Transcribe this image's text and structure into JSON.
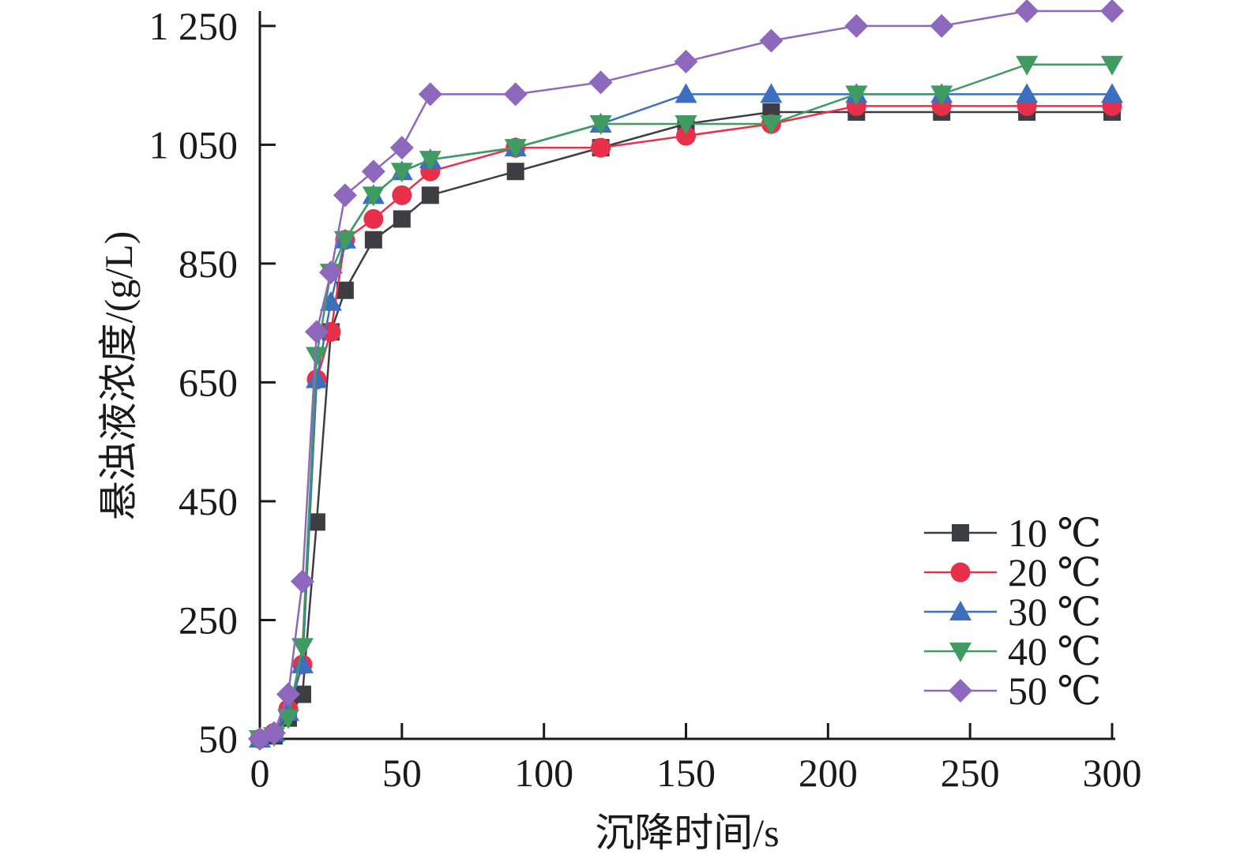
{
  "chart_data": {
    "type": "line",
    "xlabel": "沉降时间/s",
    "ylabel": "悬浊液浓度/(g/L)",
    "xlim": [
      0,
      300
    ],
    "ylim": [
      50,
      1275
    ],
    "x_ticks": [
      0,
      50,
      100,
      150,
      200,
      250,
      300
    ],
    "x_tick_labels": [
      "0",
      "50",
      "100",
      "150",
      "200",
      "250",
      "300"
    ],
    "y_ticks": [
      50,
      250,
      450,
      650,
      850,
      1050,
      1250
    ],
    "y_tick_labels": [
      "50",
      "250",
      "450",
      "650",
      "850",
      "1 050",
      "1 250"
    ],
    "grid": false,
    "legend_position": "bottom-right",
    "x": [
      0,
      5,
      10,
      15,
      20,
      25,
      30,
      40,
      50,
      60,
      90,
      120,
      150,
      180,
      210,
      240,
      270,
      300
    ],
    "series": [
      {
        "name": "10 ℃",
        "color": "#3d3d44",
        "marker": "square",
        "values": [
          50,
          55,
          85,
          125,
          415,
          735,
          805,
          890,
          925,
          965,
          1005,
          1045,
          1085,
          1105,
          1105,
          1105,
          1105,
          1105
        ]
      },
      {
        "name": "20 ℃",
        "color": "#e8304a",
        "marker": "circle",
        "values": [
          50,
          60,
          100,
          175,
          655,
          735,
          890,
          925,
          965,
          1005,
          1045,
          1045,
          1065,
          1085,
          1115,
          1115,
          1115,
          1115
        ]
      },
      {
        "name": "30 ℃",
        "color": "#3c6fc0",
        "marker": "triangle-up",
        "values": [
          50,
          60,
          95,
          175,
          655,
          785,
          890,
          965,
          1005,
          1025,
          1045,
          1085,
          1135,
          1135,
          1135,
          1135,
          1135,
          1135
        ]
      },
      {
        "name": "40 ℃",
        "color": "#3f9b5f",
        "marker": "triangle-down",
        "values": [
          50,
          55,
          85,
          205,
          695,
          835,
          890,
          965,
          1005,
          1025,
          1045,
          1085,
          1085,
          1085,
          1135,
          1135,
          1185,
          1185
        ]
      },
      {
        "name": "50 ℃",
        "color": "#8e68bd",
        "marker": "diamond",
        "values": [
          50,
          60,
          125,
          315,
          735,
          835,
          965,
          1005,
          1045,
          1135,
          1135,
          1155,
          1190,
          1225,
          1250,
          1250,
          1275,
          1275
        ]
      }
    ]
  }
}
